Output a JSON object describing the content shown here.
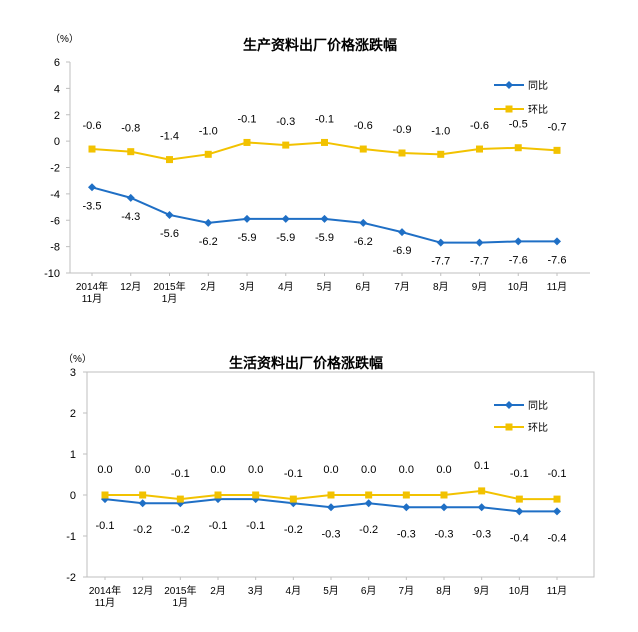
{
  "chart_data": [
    {
      "type": "line",
      "title": "生产资料出厂价格涨跌幅",
      "unit_label": "（%）",
      "categories": [
        [
          "2014年",
          "11月"
        ],
        [
          "12月"
        ],
        [
          "2015年",
          "1月"
        ],
        [
          "2月"
        ],
        [
          "3月"
        ],
        [
          "4月"
        ],
        [
          "5月"
        ],
        [
          "6月"
        ],
        [
          "7月"
        ],
        [
          "8月"
        ],
        [
          "9月"
        ],
        [
          "10月"
        ],
        [
          "11月"
        ]
      ],
      "ylim": [
        -10,
        6
      ],
      "yticks": [
        -10,
        -8,
        -6,
        -4,
        -2,
        0,
        2,
        4,
        6
      ],
      "legend_position": "top-right",
      "series": [
        {
          "name": "同比",
          "color": "#1f6fc5",
          "marker": "diamond",
          "values": [
            -3.5,
            -4.3,
            -5.6,
            -6.2,
            -5.9,
            -5.9,
            -5.9,
            -6.2,
            -6.9,
            -7.7,
            -7.7,
            -7.6,
            -7.6
          ],
          "labels": [
            "-3.5",
            "-4.3",
            "-5.6",
            "-6.2",
            "-5.9",
            "-5.9",
            "-5.9",
            "-6.2",
            "-6.9",
            "-7.7",
            "-7.7",
            "-7.6",
            "-7.6"
          ]
        },
        {
          "name": "环比",
          "color": "#f2c200",
          "marker": "square",
          "values": [
            -0.6,
            -0.8,
            -1.4,
            -1.0,
            -0.1,
            -0.3,
            -0.1,
            -0.6,
            -0.9,
            -1.0,
            -0.6,
            -0.5,
            -0.7
          ],
          "labels": [
            "-0.6",
            "-0.8",
            "-1.4",
            "-1.0",
            "-0.1",
            "-0.3",
            "-0.1",
            "-0.6",
            "-0.9",
            "-1.0",
            "-0.6",
            "-0.5",
            "-0.7"
          ]
        }
      ]
    },
    {
      "type": "line",
      "title": "生活资料出厂价格涨跌幅",
      "unit_label": "（%）",
      "categories": [
        [
          "2014年",
          "11月"
        ],
        [
          "12月"
        ],
        [
          "2015年",
          "1月"
        ],
        [
          "2月"
        ],
        [
          "3月"
        ],
        [
          "4月"
        ],
        [
          "5月"
        ],
        [
          "6月"
        ],
        [
          "7月"
        ],
        [
          "8月"
        ],
        [
          "9月"
        ],
        [
          "10月"
        ],
        [
          "11月"
        ]
      ],
      "ylim": [
        -2,
        3
      ],
      "yticks": [
        -2,
        -1,
        0,
        1,
        2,
        3
      ],
      "legend_position": "top-right",
      "series": [
        {
          "name": "同比",
          "color": "#1f6fc5",
          "marker": "diamond",
          "values": [
            -0.1,
            -0.2,
            -0.2,
            -0.1,
            -0.1,
            -0.2,
            -0.3,
            -0.2,
            -0.3,
            -0.3,
            -0.3,
            -0.4,
            -0.4
          ],
          "labels": [
            "-0.1",
            "-0.2",
            "-0.2",
            "-0.1",
            "-0.1",
            "-0.2",
            "-0.3",
            "-0.2",
            "-0.3",
            "-0.3",
            "-0.3",
            "-0.4",
            "-0.4"
          ]
        },
        {
          "name": "环比",
          "color": "#f2c200",
          "marker": "square",
          "values": [
            0.0,
            0.0,
            -0.1,
            0.0,
            0.0,
            -0.1,
            0.0,
            0.0,
            0.0,
            0.0,
            0.1,
            -0.1,
            -0.1
          ],
          "labels": [
            "0.0",
            "0.0",
            "-0.1",
            "0.0",
            "0.0",
            "-0.1",
            "0.0",
            "0.0",
            "0.0",
            "0.0",
            "0.1",
            "-0.1",
            "-0.1"
          ]
        }
      ]
    }
  ]
}
